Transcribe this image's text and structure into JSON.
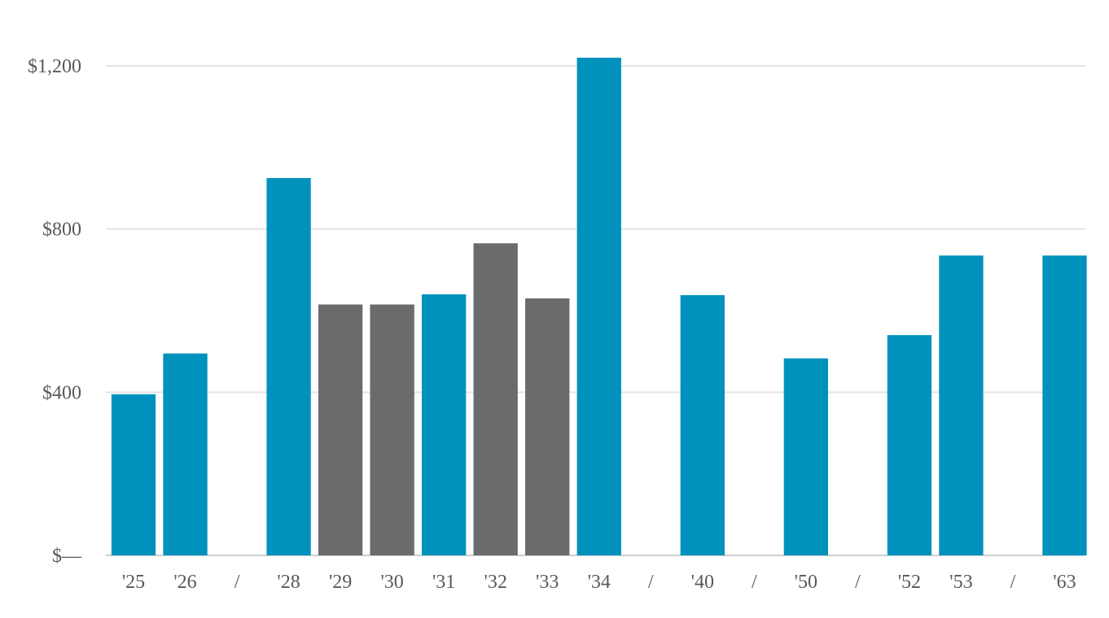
{
  "chart_data": {
    "type": "bar",
    "title": "",
    "xlabel": "",
    "ylabel": "",
    "categories": [
      "'25",
      "'26",
      "/",
      "'28",
      "'29",
      "'30",
      "'31",
      "'32",
      "'33",
      "'34",
      "/",
      "'40",
      "/",
      "'50",
      "/",
      "'52",
      "'53",
      "/",
      "'63"
    ],
    "values": [
      395,
      495,
      null,
      925,
      615,
      615,
      640,
      765,
      630,
      1220,
      null,
      638,
      null,
      483,
      null,
      540,
      735,
      null,
      735
    ],
    "highlight": [
      true,
      true,
      null,
      true,
      false,
      false,
      true,
      false,
      false,
      true,
      null,
      true,
      null,
      true,
      null,
      true,
      true,
      null,
      true
    ],
    "ylim": [
      0,
      1200
    ],
    "yticks": [
      {
        "value": 0,
        "label": "$—"
      },
      {
        "value": 400,
        "label": "$400"
      },
      {
        "value": 800,
        "label": "$800"
      },
      {
        "value": 1200,
        "label": "$1,200"
      }
    ],
    "grid": true,
    "legend": "none",
    "colors": {
      "highlight": "#0092bd",
      "other": "#6b6b6b"
    }
  }
}
